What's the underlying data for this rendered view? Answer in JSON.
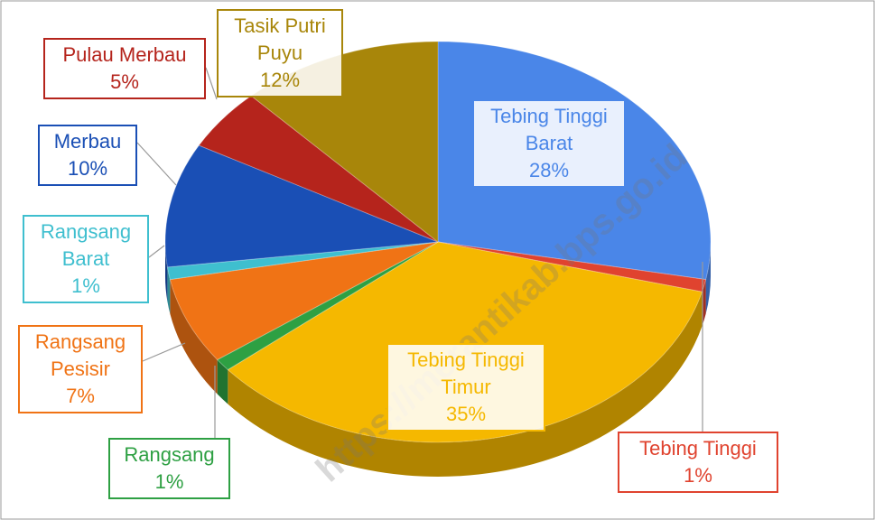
{
  "chart_data": {
    "type": "pie",
    "categories": [
      "Tebing Tinggi Barat",
      "Tebing Tinggi",
      "Tebing Tinggi Timur",
      "Rangsang",
      "Rangsang Pesisir",
      "Rangsang Barat",
      "Merbau",
      "Pulau Merbau",
      "Tasik Putri Puyu"
    ],
    "values": [
      28,
      1,
      35,
      1,
      7,
      1,
      10,
      5,
      12
    ],
    "value_labels": [
      "28%",
      "1%",
      "35%",
      "1%",
      "7%",
      "1%",
      "10%",
      "5%",
      "12%"
    ],
    "colors": [
      "#4a86e8",
      "#e0432f",
      "#f5b800",
      "#2ea043",
      "#f07315",
      "#3fbfcf",
      "#1a4fb5",
      "#b5241c",
      "#a8860a"
    ],
    "label_colors": [
      "#4a86e8",
      "#e0432f",
      "#f5b800",
      "#2ea043",
      "#f07315",
      "#3fbfcf",
      "#1a4fb5",
      "#b5241c",
      "#a8860a"
    ]
  },
  "watermark": "https://merantikab.bps.go.id"
}
